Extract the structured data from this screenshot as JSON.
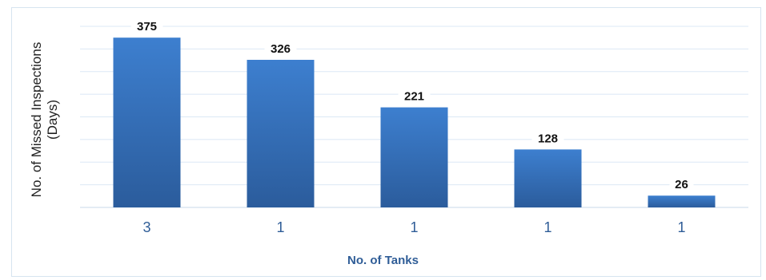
{
  "chart_data": {
    "type": "bar",
    "categories": [
      "3",
      "1",
      "1",
      "1",
      "1"
    ],
    "values": [
      375,
      326,
      221,
      128,
      26
    ],
    "xlabel": "No. of Tanks",
    "ylabel_line1": "No. of Missed Inspections",
    "ylabel_line2": "(Days)",
    "ylim": [
      0,
      400
    ],
    "grid": true,
    "colors": {
      "bar_top": "#3d7fcf",
      "bar_bottom": "#2b5c9c",
      "grid": "#dbe8f5",
      "tick_label": "#2f5d97",
      "value_label": "#111111"
    }
  }
}
